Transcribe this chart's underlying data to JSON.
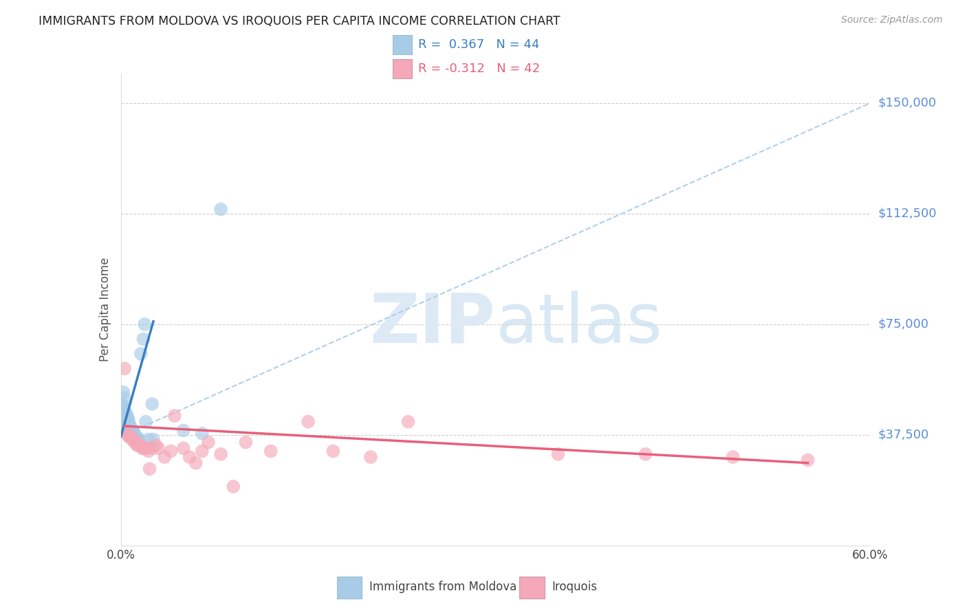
{
  "title": "IMMIGRANTS FROM MOLDOVA VS IROQUOIS PER CAPITA INCOME CORRELATION CHART",
  "source": "Source: ZipAtlas.com",
  "ylabel": "Per Capita Income",
  "xlim": [
    0.0,
    0.6
  ],
  "ylim": [
    0,
    160000
  ],
  "yticks": [
    0,
    37500,
    75000,
    112500,
    150000
  ],
  "ytick_labels": [
    "",
    "$37,500",
    "$75,000",
    "$112,500",
    "$150,000"
  ],
  "blue_R": 0.367,
  "blue_N": 44,
  "pink_R": -0.312,
  "pink_N": 42,
  "blue_color": "#a8cce8",
  "pink_color": "#f4a8b8",
  "blue_line_color": "#3a7fc1",
  "pink_line_color": "#e8607a",
  "dashed_line_color": "#b0d0e8",
  "background_color": "#ffffff",
  "grid_color": "#cccccc",
  "watermark_color": "#ddeaf5",
  "title_color": "#222222",
  "axis_label_color": "#555555",
  "ytick_color": "#5b8dd9",
  "legend_blue_label": "Immigrants from Moldova",
  "legend_pink_label": "Iroquois",
  "blue_scatter_x": [
    0.001,
    0.002,
    0.002,
    0.003,
    0.003,
    0.003,
    0.004,
    0.004,
    0.004,
    0.004,
    0.005,
    0.005,
    0.005,
    0.005,
    0.006,
    0.006,
    0.006,
    0.006,
    0.007,
    0.007,
    0.007,
    0.008,
    0.008,
    0.008,
    0.009,
    0.009,
    0.01,
    0.01,
    0.011,
    0.011,
    0.012,
    0.012,
    0.013,
    0.015,
    0.016,
    0.018,
    0.019,
    0.02,
    0.022,
    0.025,
    0.026,
    0.05,
    0.065,
    0.08
  ],
  "blue_scatter_y": [
    48000,
    52000,
    47000,
    50000,
    46000,
    44000,
    45000,
    44000,
    43000,
    42000,
    44000,
    43000,
    41000,
    40000,
    43000,
    42000,
    41000,
    40000,
    41000,
    40000,
    39000,
    40000,
    39000,
    38000,
    39000,
    38000,
    38000,
    37000,
    38000,
    37000,
    37000,
    36000,
    36000,
    36000,
    65000,
    70000,
    75000,
    42000,
    36000,
    48000,
    36000,
    39000,
    38000,
    114000
  ],
  "pink_scatter_x": [
    0.003,
    0.005,
    0.006,
    0.007,
    0.008,
    0.009,
    0.01,
    0.011,
    0.012,
    0.013,
    0.014,
    0.015,
    0.016,
    0.017,
    0.018,
    0.019,
    0.02,
    0.022,
    0.023,
    0.025,
    0.028,
    0.03,
    0.035,
    0.04,
    0.043,
    0.05,
    0.055,
    0.06,
    0.065,
    0.07,
    0.08,
    0.09,
    0.1,
    0.12,
    0.15,
    0.17,
    0.2,
    0.23,
    0.35,
    0.42,
    0.49,
    0.55
  ],
  "pink_scatter_y": [
    60000,
    38000,
    37000,
    37000,
    37000,
    36000,
    36000,
    35000,
    35000,
    34000,
    34000,
    34000,
    34000,
    33000,
    33000,
    33000,
    33000,
    32000,
    26000,
    33000,
    34000,
    33000,
    30000,
    32000,
    44000,
    33000,
    30000,
    28000,
    32000,
    35000,
    31000,
    20000,
    35000,
    32000,
    42000,
    32000,
    30000,
    42000,
    31000,
    31000,
    30000,
    29000
  ],
  "blue_line_x0": 0.0,
  "blue_line_y0": 37000,
  "blue_line_x1": 0.026,
  "blue_line_y1": 76000,
  "dashed_line_x0": 0.0,
  "dashed_line_y0": 37000,
  "dashed_line_x1": 0.6,
  "dashed_line_y1": 150000,
  "pink_line_x0": 0.003,
  "pink_line_y0": 40500,
  "pink_line_x1": 0.55,
  "pink_line_y1": 28000
}
